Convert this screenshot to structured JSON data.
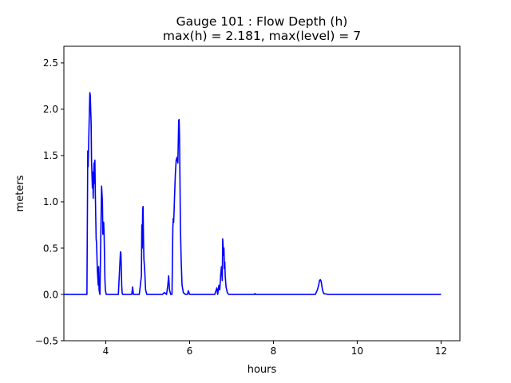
{
  "chart_data": {
    "type": "line",
    "title_line1": "Gauge 101 : Flow Depth (h)",
    "title_line2": "max(h) =   2.181,    max(level) = 7",
    "xlabel": "hours",
    "ylabel": "meters",
    "xlim": [
      3.0,
      12.45
    ],
    "ylim": [
      -0.5,
      2.68
    ],
    "xticks": [
      4,
      6,
      8,
      10,
      12
    ],
    "xtick_labels": [
      "4",
      "6",
      "8",
      "10",
      "12"
    ],
    "yticks": [
      -0.5,
      0.0,
      0.5,
      1.0,
      1.5,
      2.0,
      2.5
    ],
    "ytick_labels": [
      "−0.5",
      "0.0",
      "0.5",
      "1.0",
      "1.5",
      "2.0",
      "2.5"
    ],
    "grid": false,
    "line_color": "#0000ff",
    "series": [
      {
        "x": [
          3.0,
          3.55,
          3.57,
          3.58,
          3.6,
          3.62,
          3.63,
          3.64,
          3.65,
          3.66,
          3.67,
          3.68,
          3.69,
          3.7,
          3.71,
          3.72,
          3.73,
          3.74,
          3.75,
          3.76,
          3.77,
          3.78,
          3.8,
          3.82,
          3.83,
          3.84,
          3.85,
          3.86,
          3.88,
          3.9,
          3.92,
          3.93,
          3.94,
          3.95,
          3.96,
          3.97,
          3.98,
          3.99,
          4.01,
          4.05,
          4.3,
          4.35,
          4.36,
          4.37,
          4.38,
          4.39,
          4.4,
          4.62,
          4.64,
          4.66,
          4.8,
          4.85,
          4.86,
          4.87,
          4.88,
          4.89,
          4.9,
          4.91,
          4.93,
          4.95,
          4.98,
          5.35,
          5.4,
          5.45,
          5.48,
          5.5,
          5.52,
          5.55,
          5.58,
          5.6,
          5.61,
          5.62,
          5.63,
          5.64,
          5.66,
          5.68,
          5.7,
          5.72,
          5.74,
          5.75,
          5.76,
          5.77,
          5.78,
          5.8,
          5.82,
          5.85,
          5.9,
          5.95,
          5.97,
          6.0,
          6.6,
          6.65,
          6.67,
          6.7,
          6.72,
          6.74,
          6.76,
          6.78,
          6.79,
          6.8,
          6.81,
          6.82,
          6.83,
          6.84,
          6.85,
          6.87,
          6.9,
          6.93,
          6.96,
          7.0,
          7.55,
          7.56,
          7.57,
          8.9,
          9.0,
          9.05,
          9.08,
          9.1,
          9.12,
          9.14,
          9.17,
          9.2,
          9.3,
          12.0
        ],
        "y": [
          0.0,
          0.0,
          1.55,
          1.38,
          1.8,
          2.18,
          2.15,
          2.0,
          1.85,
          1.45,
          1.3,
          1.15,
          1.32,
          1.04,
          1.25,
          1.42,
          1.2,
          1.45,
          1.1,
          0.85,
          0.6,
          0.55,
          0.25,
          0.1,
          0.3,
          0.05,
          0.02,
          0.0,
          0.6,
          1.17,
          1.0,
          0.65,
          0.72,
          0.78,
          0.65,
          0.4,
          0.15,
          0.05,
          0.0,
          0.0,
          0.0,
          0.46,
          0.45,
          0.3,
          0.1,
          0.02,
          0.0,
          0.0,
          0.08,
          0.0,
          0.0,
          0.2,
          0.75,
          0.5,
          0.92,
          0.95,
          0.6,
          0.38,
          0.25,
          0.05,
          0.0,
          0.0,
          0.02,
          0.0,
          0.1,
          0.2,
          0.05,
          0.0,
          0.0,
          0.72,
          0.82,
          0.78,
          0.9,
          1.05,
          1.3,
          1.45,
          1.48,
          1.42,
          1.88,
          1.89,
          1.7,
          1.25,
          0.75,
          0.35,
          0.1,
          0.02,
          0.0,
          0.0,
          0.04,
          0.0,
          0.0,
          0.07,
          0.0,
          0.1,
          0.05,
          0.2,
          0.3,
          0.15,
          0.6,
          0.52,
          0.42,
          0.5,
          0.28,
          0.35,
          0.2,
          0.08,
          0.02,
          0.0,
          0.0,
          0.0,
          0.0,
          0.01,
          0.0,
          0.0,
          0.0,
          0.05,
          0.1,
          0.15,
          0.16,
          0.14,
          0.05,
          0.01,
          0.0,
          0.0
        ]
      }
    ]
  }
}
